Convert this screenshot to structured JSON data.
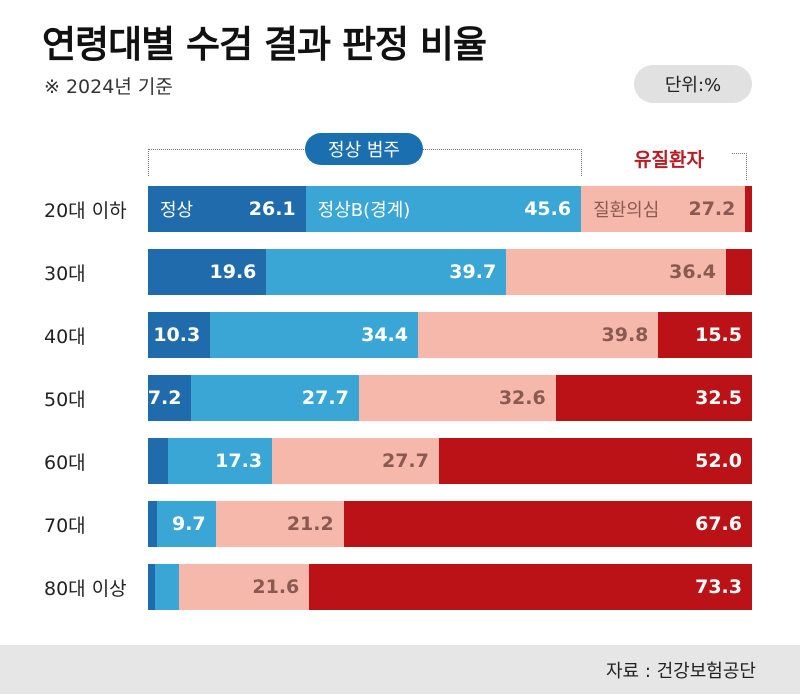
{
  "title": "연령대별 수검 결과 판정 비율",
  "subtitle": "※ 2024년 기준",
  "unit": "단위:%",
  "group_label_normal_range": "정상 범주",
  "group_label_patient": "유질환자",
  "source": "자료 : 건강보험공단",
  "colors": {
    "normal": "#1f6bab",
    "normal_b": "#3aa6d6",
    "suspected": "#f6b8ab",
    "patient": "#bb1217"
  },
  "chart_data": {
    "type": "bar",
    "orientation": "horizontal",
    "stacked": true,
    "categories": [
      "20대 이하",
      "30대",
      "40대",
      "50대",
      "60대",
      "70대",
      "80대 이상"
    ],
    "series": [
      {
        "name": "정상",
        "values": [
          26.1,
          19.6,
          10.3,
          7.2,
          3.3,
          1.5,
          1.2
        ],
        "labels": [
          "26.1",
          "19.6",
          "10.3",
          "7.2",
          "",
          "",
          ""
        ]
      },
      {
        "name": "정상B(경계)",
        "values": [
          45.6,
          39.7,
          34.4,
          27.7,
          17.3,
          9.7,
          3.9
        ],
        "labels": [
          "45.6",
          "39.7",
          "34.4",
          "27.7",
          "17.3",
          "9.7",
          ""
        ]
      },
      {
        "name": "질환의심",
        "values": [
          27.2,
          36.4,
          39.8,
          32.6,
          27.7,
          21.2,
          21.6
        ],
        "labels": [
          "27.2",
          "36.4",
          "39.8",
          "32.6",
          "27.7",
          "21.2",
          "21.6"
        ]
      },
      {
        "name": "유질환자",
        "values": [
          1.1,
          4.3,
          15.5,
          32.5,
          52.0,
          67.6,
          73.3
        ],
        "labels": [
          "",
          "",
          "15.5",
          "32.5",
          "52.0",
          "67.6",
          "73.3"
        ]
      }
    ],
    "legend_inline_row": 0,
    "xlim": [
      0,
      100
    ]
  }
}
